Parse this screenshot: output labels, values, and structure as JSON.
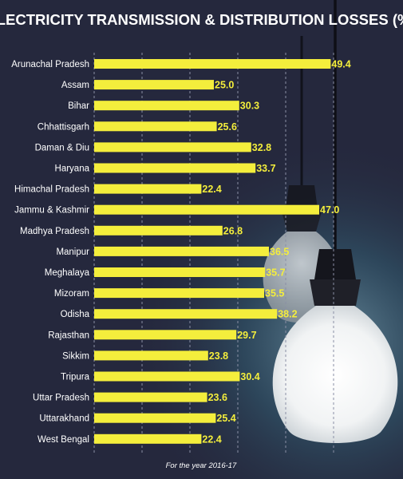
{
  "chart_data": {
    "type": "bar",
    "orientation": "horizontal",
    "title": "ELECTRICITY TRANSMISSION & DISTRIBUTION LOSSES (%)",
    "categories": [
      "Arunachal Pradesh",
      "Assam",
      "Bihar",
      "Chhattisgarh",
      "Daman & Diu",
      "Haryana",
      "Himachal Pradesh",
      "Jammu & Kashmir",
      "Madhya Pradesh",
      "Manipur",
      "Meghalaya",
      "Mizoram",
      "Odisha",
      "Rajasthan",
      "Sikkim",
      "Tripura",
      "Uttar Pradesh",
      "Uttarakhand",
      "West Bengal"
    ],
    "values": [
      49.4,
      25.0,
      30.3,
      25.6,
      32.8,
      33.7,
      22.4,
      47.0,
      26.8,
      36.5,
      35.7,
      35.5,
      38.2,
      29.7,
      23.8,
      30.4,
      23.6,
      25.4,
      22.4
    ],
    "value_labels": [
      "49.4",
      "25.0",
      "30.3",
      "25.6",
      "32.8",
      "33.7",
      "22.4",
      "47.0",
      "26.8",
      "36.5",
      "35.7",
      "35.5",
      "38.2",
      "29.7",
      "23.8",
      "30.4",
      "23.6",
      "25.4",
      "22.4"
    ],
    "xlim": [
      0,
      50
    ],
    "gridlines": [
      0,
      10,
      20,
      30,
      40,
      50
    ],
    "grid": true,
    "legend": "none",
    "footnote": "For the year 2016-17",
    "colors": {
      "background": "#25283d",
      "bar": "#f4ee3c",
      "value_label": "#f4ee3c",
      "text": "#ffffff",
      "grid": "#8a8fa5"
    }
  }
}
